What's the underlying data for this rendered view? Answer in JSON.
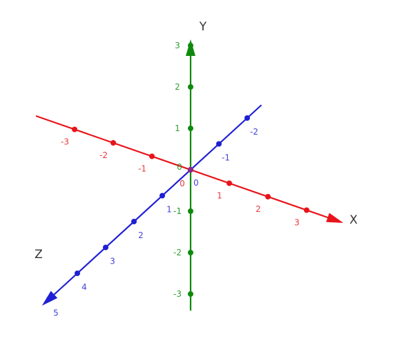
{
  "axes": [
    {
      "id": "x",
      "name": "X",
      "color": "#e8141a",
      "ticks": [
        "-3",
        "-2",
        "-1",
        "0",
        "1",
        "2",
        "3"
      ]
    },
    {
      "id": "y",
      "name": "Y",
      "color": "#0d8a0d",
      "ticks": [
        "-3",
        "-2",
        "-1",
        "0",
        "1",
        "2",
        "3"
      ]
    },
    {
      "id": "z",
      "name": "Z",
      "color": "#1f1fd4",
      "ticks": [
        "-2",
        "-1",
        "0",
        "1",
        "2",
        "3",
        "4",
        "5"
      ]
    }
  ]
}
